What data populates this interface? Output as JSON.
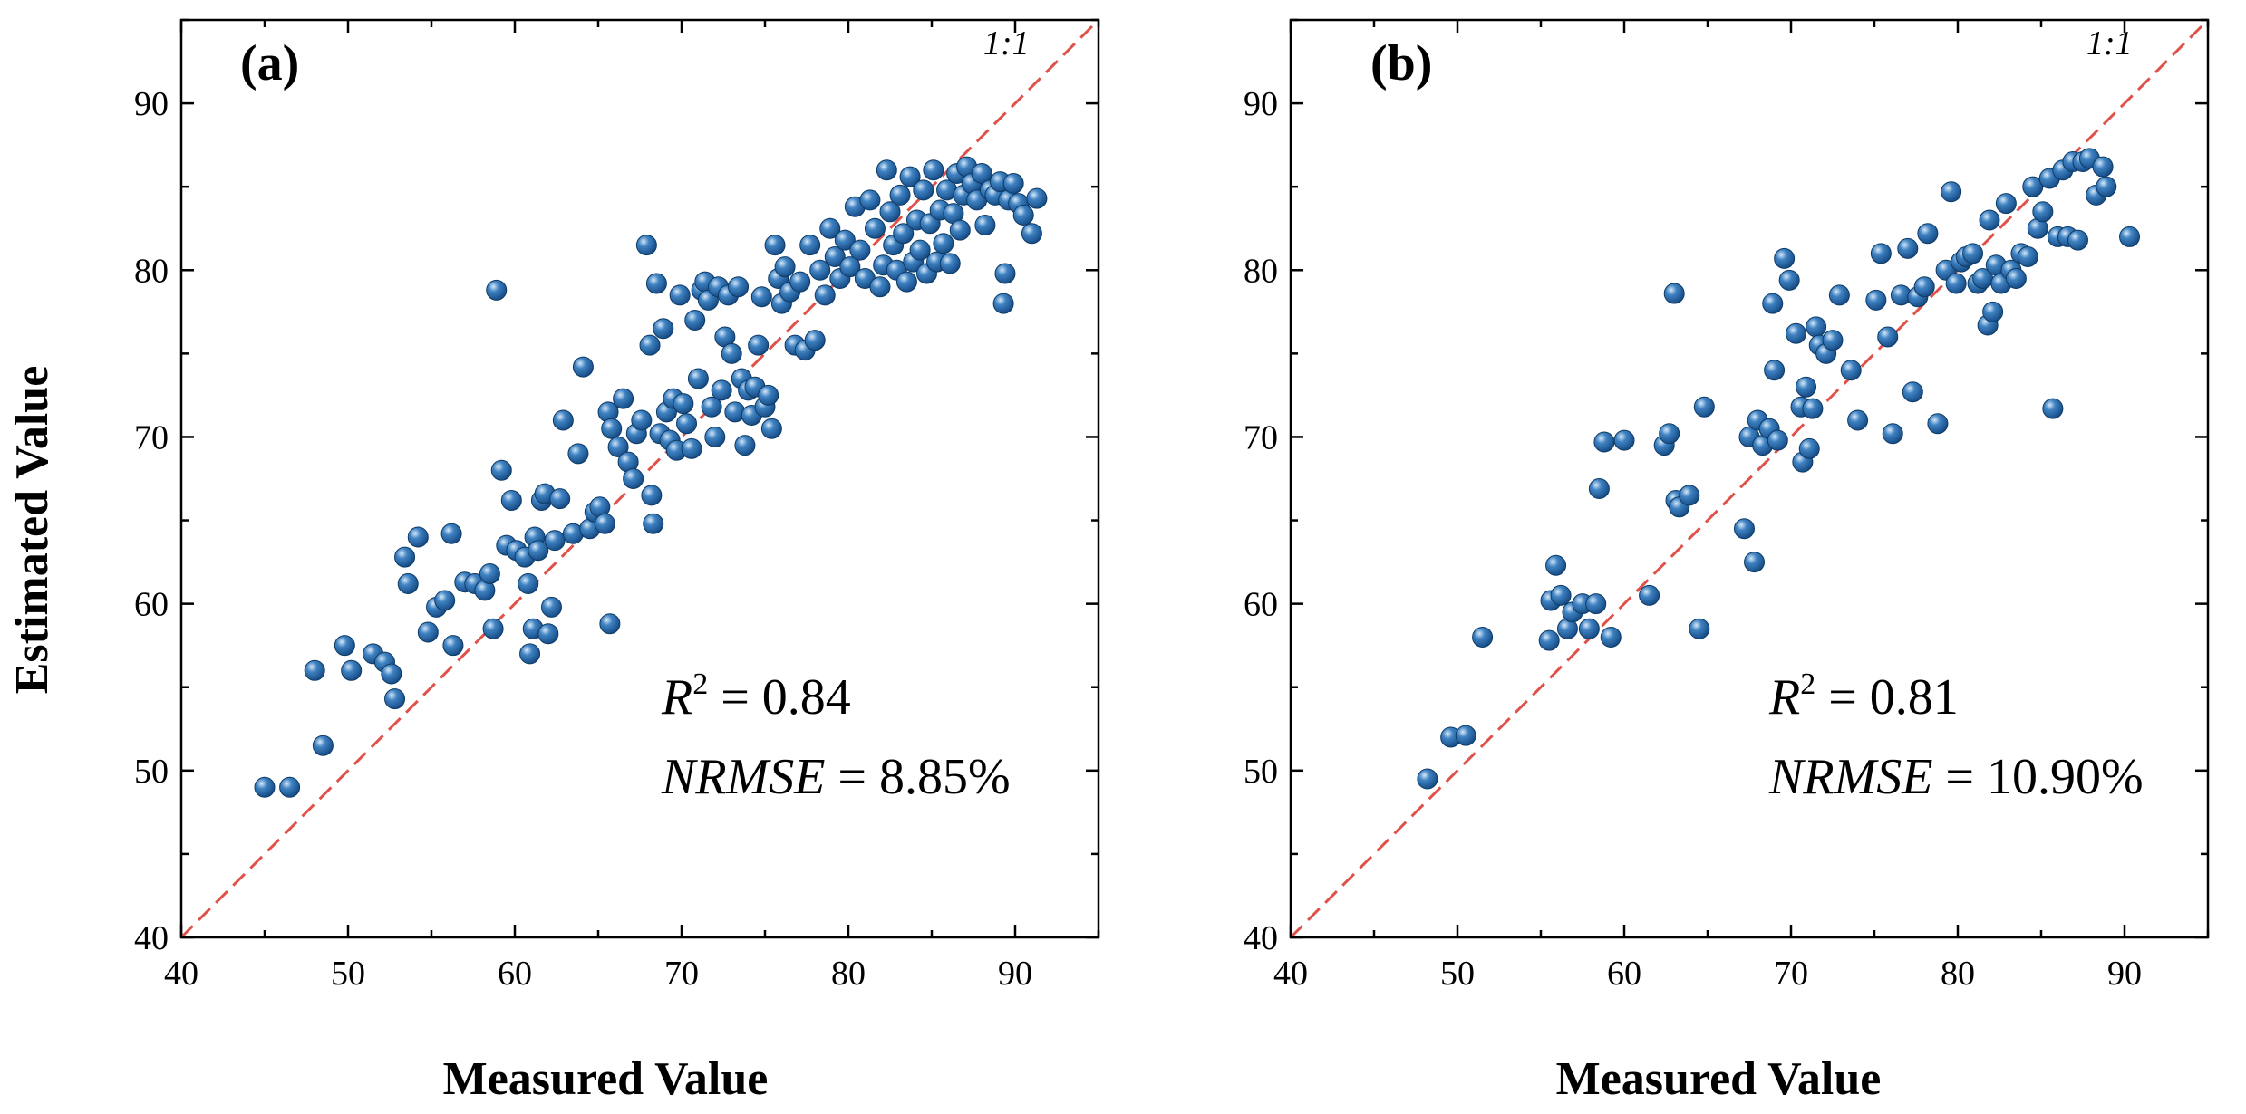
{
  "figure": {
    "ylabel": "Estimated Value",
    "colors": {
      "point": "#1f5e9c",
      "point_highlight": "#cfe2f5",
      "point_edge": "#0e3b66",
      "one_to_one": "#e0514a",
      "axis": "#000000"
    }
  },
  "chart_data": [
    {
      "type": "scatter",
      "panel_label": "(a)",
      "xlabel": "Measured Value",
      "ylabel": "Estimated Value",
      "xlim": [
        40,
        95
      ],
      "ylim": [
        40,
        95
      ],
      "xticks": [
        "40",
        "50",
        "60",
        "70",
        "80",
        "90"
      ],
      "yticks": [
        "40",
        "50",
        "60",
        "70",
        "80",
        "90"
      ],
      "reference_line": {
        "label": "1:1",
        "slope": 1,
        "intercept": 0
      },
      "stats": {
        "r2_label": "R",
        "r2_sup": "2",
        "r2_value": " = 0.84",
        "nrmse_label": "NRMSE",
        "nrmse_value": " = 8.85%"
      },
      "points": [
        [
          45,
          49
        ],
        [
          46.5,
          49
        ],
        [
          48,
          56
        ],
        [
          48.5,
          51.5
        ],
        [
          49.8,
          57.5
        ],
        [
          50.2,
          56
        ],
        [
          51.5,
          57
        ],
        [
          52.2,
          56.5
        ],
        [
          52.6,
          55.8
        ],
        [
          52.8,
          54.3
        ],
        [
          53.4,
          62.8
        ],
        [
          53.6,
          61.2
        ],
        [
          54.2,
          64
        ],
        [
          54.8,
          58.3
        ],
        [
          55.3,
          59.8
        ],
        [
          55.8,
          60.2
        ],
        [
          56.2,
          64.2
        ],
        [
          56.3,
          57.5
        ],
        [
          57,
          61.3
        ],
        [
          57.6,
          61.2
        ],
        [
          58.2,
          60.8
        ],
        [
          58.5,
          61.8
        ],
        [
          58.7,
          58.5
        ],
        [
          58.9,
          78.8
        ],
        [
          59.2,
          68
        ],
        [
          59.5,
          63.5
        ],
        [
          59.8,
          66.2
        ],
        [
          60.1,
          63.2
        ],
        [
          60.6,
          62.8
        ],
        [
          60.8,
          61.2
        ],
        [
          60.9,
          57
        ],
        [
          61.1,
          58.5
        ],
        [
          61.2,
          64
        ],
        [
          61.4,
          63.2
        ],
        [
          61.6,
          66.2
        ],
        [
          61.8,
          66.6
        ],
        [
          62,
          58.2
        ],
        [
          62.2,
          59.8
        ],
        [
          62.4,
          63.8
        ],
        [
          62.7,
          66.3
        ],
        [
          62.9,
          71
        ],
        [
          63.5,
          64.2
        ],
        [
          63.8,
          69
        ],
        [
          64.1,
          74.2
        ],
        [
          64.5,
          64.5
        ],
        [
          64.8,
          65.5
        ],
        [
          65.1,
          65.8
        ],
        [
          65.4,
          64.8
        ],
        [
          65.6,
          71.5
        ],
        [
          65.8,
          70.5
        ],
        [
          65.7,
          58.8
        ],
        [
          66.2,
          69.4
        ],
        [
          66.5,
          72.3
        ],
        [
          66.8,
          68.5
        ],
        [
          67.1,
          67.5
        ],
        [
          67.3,
          70.2
        ],
        [
          67.6,
          71
        ],
        [
          67.9,
          81.5
        ],
        [
          68.1,
          75.5
        ],
        [
          68.2,
          66.5
        ],
        [
          68.3,
          64.8
        ],
        [
          68.5,
          79.2
        ],
        [
          68.7,
          70.2
        ],
        [
          68.9,
          76.5
        ],
        [
          69.1,
          71.5
        ],
        [
          69.3,
          69.8
        ],
        [
          69.5,
          72.3
        ],
        [
          69.7,
          69.2
        ],
        [
          69.9,
          78.5
        ],
        [
          70.1,
          72
        ],
        [
          70.3,
          70.8
        ],
        [
          70.6,
          69.3
        ],
        [
          70.8,
          77
        ],
        [
          71,
          73.5
        ],
        [
          71.2,
          78.8
        ],
        [
          71.4,
          79.3
        ],
        [
          71.6,
          78.2
        ],
        [
          71.8,
          71.8
        ],
        [
          72,
          70
        ],
        [
          72.2,
          79
        ],
        [
          72.4,
          72.8
        ],
        [
          72.6,
          76
        ],
        [
          72.8,
          78.5
        ],
        [
          73,
          75
        ],
        [
          73.2,
          71.5
        ],
        [
          73.4,
          79
        ],
        [
          73.6,
          73.5
        ],
        [
          73.8,
          69.5
        ],
        [
          74,
          72.8
        ],
        [
          74.2,
          71.3
        ],
        [
          74.4,
          73
        ],
        [
          74.6,
          75.5
        ],
        [
          74.8,
          78.4
        ],
        [
          75,
          71.8
        ],
        [
          75.2,
          72.5
        ],
        [
          75.4,
          70.5
        ],
        [
          75.6,
          81.5
        ],
        [
          75.8,
          79.5
        ],
        [
          76,
          78
        ],
        [
          76.2,
          80.2
        ],
        [
          76.5,
          78.7
        ],
        [
          76.8,
          75.5
        ],
        [
          77.1,
          79.3
        ],
        [
          77.4,
          75.2
        ],
        [
          77.7,
          81.5
        ],
        [
          78,
          75.8
        ],
        [
          78.3,
          80
        ],
        [
          78.6,
          78.5
        ],
        [
          78.9,
          82.5
        ],
        [
          79.2,
          80.8
        ],
        [
          79.5,
          79.5
        ],
        [
          79.8,
          81.8
        ],
        [
          80.1,
          80.2
        ],
        [
          80.4,
          83.8
        ],
        [
          80.7,
          81.2
        ],
        [
          81,
          79.5
        ],
        [
          81.3,
          84.2
        ],
        [
          81.6,
          82.5
        ],
        [
          81.9,
          79
        ],
        [
          82.1,
          80.3
        ],
        [
          82.3,
          86
        ],
        [
          82.5,
          83.5
        ],
        [
          82.7,
          81.5
        ],
        [
          82.9,
          80
        ],
        [
          83.1,
          84.5
        ],
        [
          83.3,
          82.2
        ],
        [
          83.5,
          79.3
        ],
        [
          83.7,
          85.6
        ],
        [
          83.9,
          80.5
        ],
        [
          84.1,
          83
        ],
        [
          84.3,
          81.2
        ],
        [
          84.5,
          84.8
        ],
        [
          84.7,
          79.8
        ],
        [
          84.9,
          82.8
        ],
        [
          85.1,
          86
        ],
        [
          85.3,
          80.5
        ],
        [
          85.5,
          83.6
        ],
        [
          85.7,
          81.6
        ],
        [
          85.9,
          84.8
        ],
        [
          86.1,
          80.4
        ],
        [
          86.3,
          83.4
        ],
        [
          86.5,
          85.8
        ],
        [
          86.7,
          82.4
        ],
        [
          86.9,
          84.5
        ],
        [
          87.1,
          86.2
        ],
        [
          87.4,
          85.2
        ],
        [
          87.7,
          84.2
        ],
        [
          88,
          85.8
        ],
        [
          88.2,
          82.7
        ],
        [
          88.5,
          84.8
        ],
        [
          88.8,
          84.5
        ],
        [
          89.1,
          85.3
        ],
        [
          89.3,
          78
        ],
        [
          89.4,
          79.8
        ],
        [
          89.6,
          84.2
        ],
        [
          89.9,
          85.2
        ],
        [
          90.2,
          84
        ],
        [
          90.5,
          83.3
        ],
        [
          91,
          82.2
        ],
        [
          91.3,
          84.3
        ]
      ]
    },
    {
      "type": "scatter",
      "panel_label": "(b)",
      "xlabel": "Measured Value",
      "ylabel": "",
      "xlim": [
        40,
        95
      ],
      "ylim": [
        40,
        95
      ],
      "xticks": [
        "40",
        "50",
        "60",
        "70",
        "80",
        "90"
      ],
      "yticks": [
        "40",
        "50",
        "60",
        "70",
        "80",
        "90"
      ],
      "reference_line": {
        "label": "1:1",
        "slope": 1,
        "intercept": 0
      },
      "stats": {
        "r2_label": "R",
        "r2_sup": "2",
        "r2_value": " = 0.81",
        "nrmse_label": "NRMSE",
        "nrmse_value": " = 10.90%"
      },
      "points": [
        [
          48.2,
          49.5
        ],
        [
          49.6,
          52
        ],
        [
          50.5,
          52.1
        ],
        [
          51.5,
          58
        ],
        [
          55.5,
          57.8
        ],
        [
          55.6,
          60.2
        ],
        [
          55.9,
          62.3
        ],
        [
          56.2,
          60.5
        ],
        [
          56.6,
          58.5
        ],
        [
          56.9,
          59.5
        ],
        [
          57.5,
          60
        ],
        [
          57.9,
          58.5
        ],
        [
          58.3,
          60
        ],
        [
          58.5,
          66.9
        ],
        [
          58.8,
          69.7
        ],
        [
          59.2,
          58
        ],
        [
          60,
          69.8
        ],
        [
          61.5,
          60.5
        ],
        [
          62.4,
          69.5
        ],
        [
          62.7,
          70.2
        ],
        [
          63,
          78.6
        ],
        [
          63.1,
          66.2
        ],
        [
          63.3,
          65.8
        ],
        [
          63.9,
          66.5
        ],
        [
          64.5,
          58.5
        ],
        [
          64.8,
          71.8
        ],
        [
          67.2,
          64.5
        ],
        [
          67.5,
          70
        ],
        [
          67.8,
          62.5
        ],
        [
          68,
          71
        ],
        [
          68.3,
          69.5
        ],
        [
          68.7,
          70.5
        ],
        [
          68.9,
          78
        ],
        [
          69,
          74
        ],
        [
          69.2,
          69.8
        ],
        [
          69.6,
          80.7
        ],
        [
          69.9,
          79.4
        ],
        [
          70.3,
          76.2
        ],
        [
          70.6,
          71.8
        ],
        [
          70.7,
          68.5
        ],
        [
          70.9,
          73
        ],
        [
          71.1,
          69.3
        ],
        [
          71.3,
          71.7
        ],
        [
          71.5,
          76.6
        ],
        [
          71.7,
          75.5
        ],
        [
          72.1,
          75
        ],
        [
          72.5,
          75.8
        ],
        [
          72.9,
          78.5
        ],
        [
          73.6,
          74
        ],
        [
          74,
          71
        ],
        [
          75.1,
          78.2
        ],
        [
          75.4,
          81
        ],
        [
          75.8,
          76
        ],
        [
          76.1,
          70.2
        ],
        [
          76.6,
          78.5
        ],
        [
          77,
          81.3
        ],
        [
          77.3,
          72.7
        ],
        [
          77.6,
          78.4
        ],
        [
          78,
          79
        ],
        [
          78.2,
          82.2
        ],
        [
          78.8,
          70.8
        ],
        [
          79.3,
          80
        ],
        [
          79.6,
          84.7
        ],
        [
          79.9,
          79.2
        ],
        [
          80.2,
          80.5
        ],
        [
          80.5,
          80.8
        ],
        [
          80.9,
          81
        ],
        [
          81.2,
          79.2
        ],
        [
          81.5,
          79.5
        ],
        [
          81.8,
          76.7
        ],
        [
          81.9,
          83
        ],
        [
          82.1,
          77.5
        ],
        [
          82.3,
          80.3
        ],
        [
          82.6,
          79.2
        ],
        [
          82.9,
          84
        ],
        [
          83.2,
          80
        ],
        [
          83.5,
          79.5
        ],
        [
          83.8,
          81
        ],
        [
          84.2,
          80.8
        ],
        [
          84.5,
          85
        ],
        [
          84.8,
          82.5
        ],
        [
          85.1,
          83.5
        ],
        [
          85.5,
          85.5
        ],
        [
          85.7,
          71.7
        ],
        [
          86,
          82
        ],
        [
          86.3,
          86
        ],
        [
          86.6,
          82
        ],
        [
          86.9,
          86.5
        ],
        [
          87.2,
          81.8
        ],
        [
          87.5,
          86.5
        ],
        [
          87.9,
          86.7
        ],
        [
          88.3,
          84.5
        ],
        [
          88.7,
          86.2
        ],
        [
          88.9,
          85
        ],
        [
          90.3,
          82
        ]
      ]
    }
  ]
}
